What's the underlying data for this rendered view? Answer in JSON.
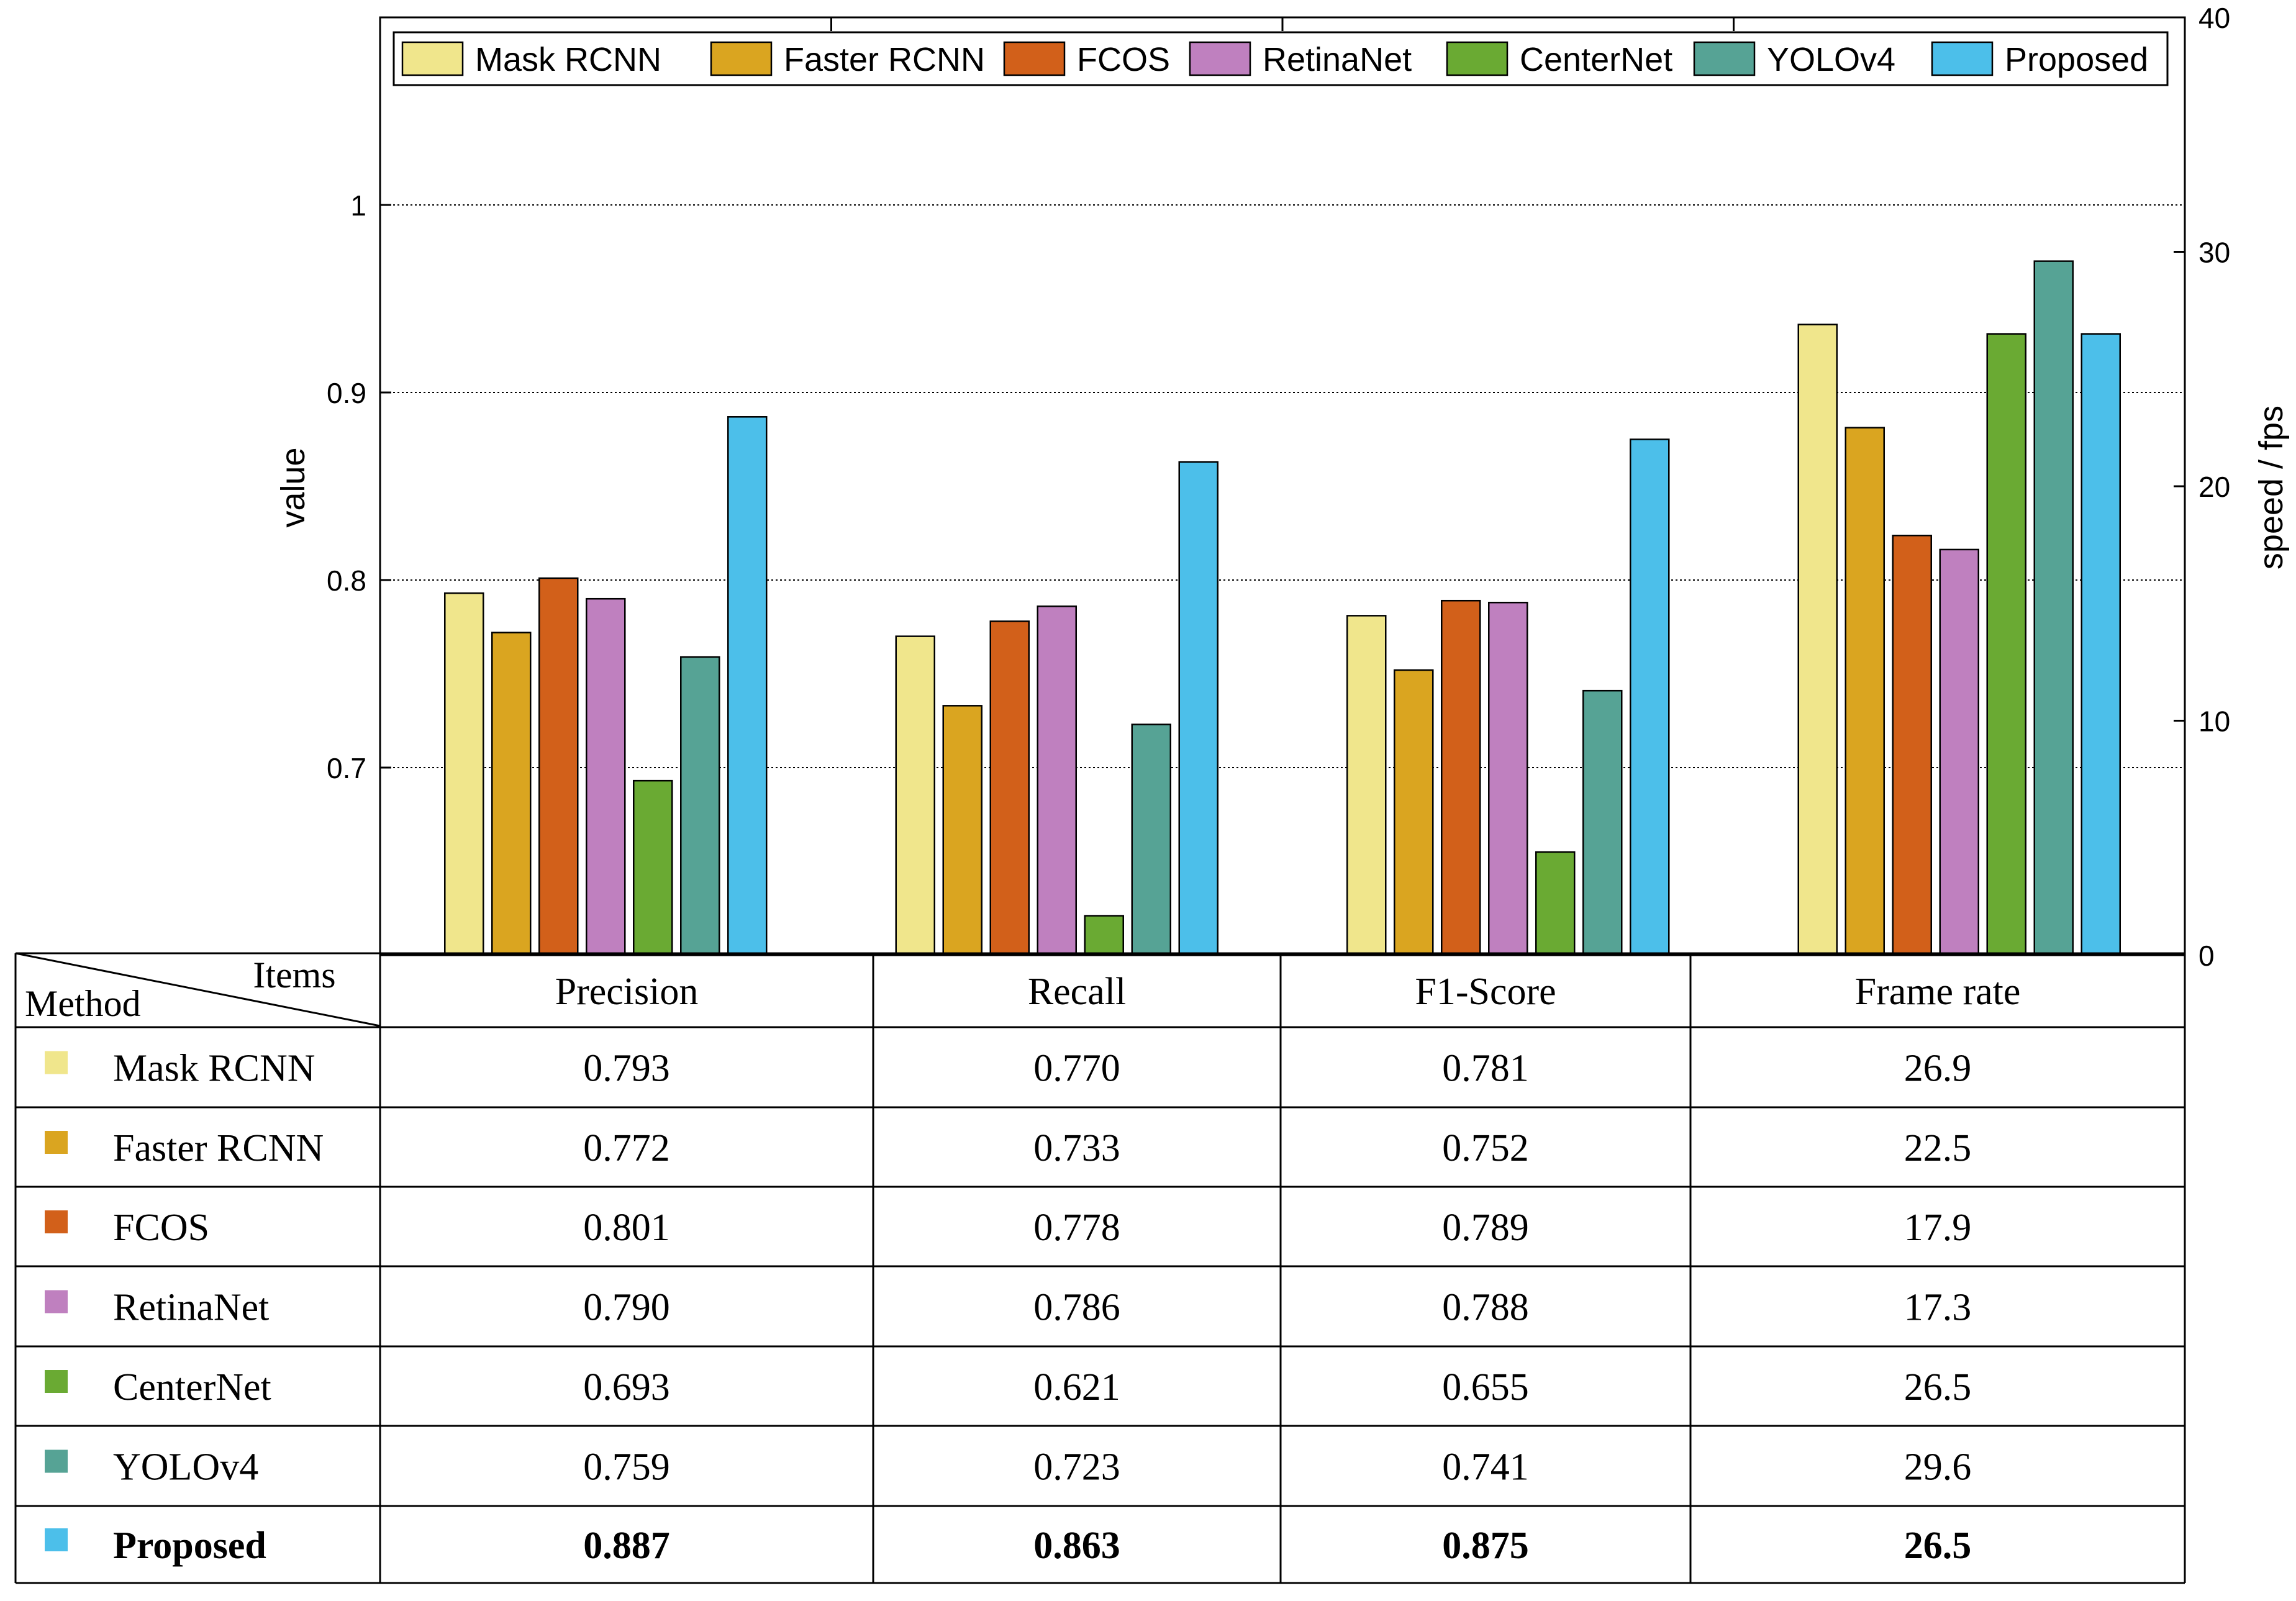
{
  "chart_data": {
    "type": "bar",
    "categories": [
      "Precision",
      "Recall",
      "F1-Score",
      "Frame rate"
    ],
    "series": [
      {
        "name": "Mask RCNN",
        "color": "#F0E68C",
        "values": [
          0.793,
          0.77,
          0.781,
          26.9
        ]
      },
      {
        "name": "Faster RCNN",
        "color": "#DAA520",
        "values": [
          0.772,
          0.733,
          0.752,
          22.5
        ]
      },
      {
        "name": "FCOS",
        "color": "#D2601A",
        "values": [
          0.801,
          0.778,
          0.789,
          17.9
        ]
      },
      {
        "name": "RetinaNet",
        "color": "#BF80BF",
        "values": [
          0.79,
          0.786,
          0.788,
          17.3
        ]
      },
      {
        "name": "CenterNet",
        "color": "#6AAA33",
        "values": [
          0.693,
          0.621,
          0.655,
          26.5
        ]
      },
      {
        "name": "YOLOv4",
        "color": "#56A395",
        "values": [
          0.759,
          0.723,
          0.741,
          29.6
        ]
      },
      {
        "name": "Proposed",
        "color": "#4CBFEA",
        "values": [
          0.887,
          0.863,
          0.875,
          26.5
        ]
      }
    ],
    "display_values": [
      [
        "0.793",
        "0.770",
        "0.781",
        "26.9"
      ],
      [
        "0.772",
        "0.733",
        "0.752",
        "22.5"
      ],
      [
        "0.801",
        "0.778",
        "0.789",
        "17.9"
      ],
      [
        "0.790",
        "0.786",
        "0.788",
        "17.3"
      ],
      [
        "0.693",
        "0.621",
        "0.655",
        "26.5"
      ],
      [
        "0.759",
        "0.723",
        "0.741",
        "29.6"
      ],
      [
        "0.887",
        "0.863",
        "0.875",
        "26.5"
      ]
    ],
    "highlight_row": 6,
    "left_axis": {
      "label": "value",
      "ylim": [
        0.6,
        1.1
      ],
      "ticks": [
        0.7,
        0.8,
        0.9,
        1.0
      ],
      "tick_labels": [
        "0.7",
        "0.8",
        "0.9",
        "1"
      ]
    },
    "right_axis": {
      "label": "speed / fps",
      "ylim": [
        0,
        40
      ],
      "ticks": [
        0,
        10,
        20,
        30,
        40
      ],
      "tick_labels": [
        "0",
        "10",
        "20",
        "30",
        "40"
      ],
      "applies_to_category": "Frame rate"
    },
    "grid": true,
    "legend_position": "top"
  },
  "table": {
    "corner_top": "Items",
    "corner_bottom": "Method"
  }
}
